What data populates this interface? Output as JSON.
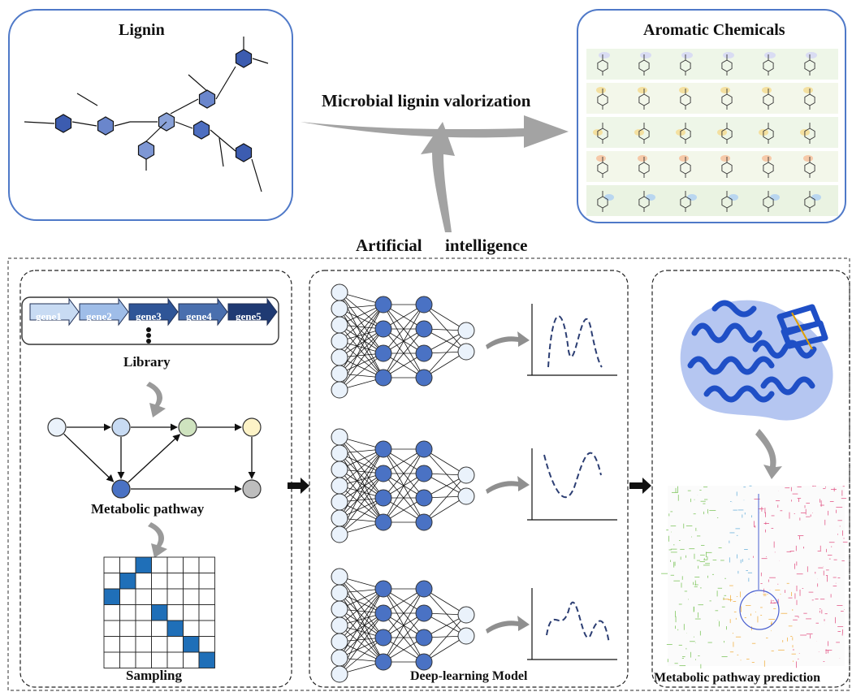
{
  "top": {
    "lignin_title": "Lignin",
    "aromatic_title": "Aromatic Chemicals",
    "arrow_label": "Microbial lignin valorization",
    "ai_label_1": "Artificial",
    "ai_label_2": "intelligence"
  },
  "left_panel": {
    "genes": [
      "gene1",
      "gene2",
      "gene3",
      "gene4",
      "gene5"
    ],
    "library_label": "Library",
    "pathway_label": "Metabolic pathway",
    "sampling_label": "Sampling"
  },
  "middle_panel": {
    "label": "Deep-learning Model"
  },
  "right_panel": {
    "label": "Metabolic pathway prediction"
  },
  "colors": {
    "panel_border": "#4f79c8",
    "arrow_gray": "#9a9a9a",
    "node_blue": "#4a72c4",
    "node_light": "#eaf2fb",
    "sampling_blue": "#1f6fb8",
    "protein_blue": "#1f4fc6"
  }
}
